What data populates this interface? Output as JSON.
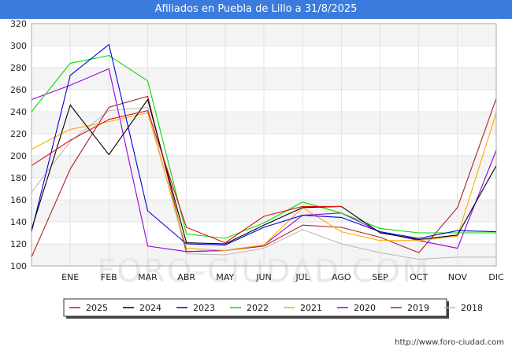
{
  "chart_data": {
    "type": "line",
    "title": "Afiliados en Puebla de Lillo a 31/8/2025",
    "x_labels": [
      "",
      "ENE",
      "FEB",
      "MAR",
      "ABR",
      "MAY",
      "JUN",
      "JUL",
      "AGO",
      "SEP",
      "OCT",
      "NOV",
      "DIC"
    ],
    "ylim": [
      100,
      320
    ],
    "yticks": [
      "100",
      "120",
      "140",
      "160",
      "180",
      "200",
      "220",
      "240",
      "260",
      "280",
      "300",
      "320"
    ],
    "ytick_values": [
      100,
      120,
      140,
      160,
      180,
      200,
      220,
      240,
      260,
      280,
      300,
      320
    ],
    "grid": true,
    "legend_position": "bottom",
    "series": [
      {
        "name": "2025",
        "color": "#dd1111",
        "values": [
          191,
          214,
          233,
          241,
          135,
          121,
          145,
          154,
          154
        ]
      },
      {
        "name": "2024",
        "color": "#000000",
        "values": [
          133,
          246,
          201,
          251,
          121,
          120,
          137,
          153,
          154,
          130,
          124,
          128,
          191
        ]
      },
      {
        "name": "2023",
        "color": "#0000dd",
        "values": [
          131,
          273,
          301,
          150,
          120,
          119,
          135,
          146,
          144,
          131,
          125,
          132,
          131
        ]
      },
      {
        "name": "2022",
        "color": "#00dd00",
        "values": [
          240,
          284,
          291,
          268,
          129,
          125,
          139,
          158,
          148,
          134,
          130,
          130,
          130
        ]
      },
      {
        "name": "2021",
        "color": "#ffaa00",
        "values": [
          206,
          224,
          231,
          239,
          116,
          114,
          119,
          153,
          131,
          123,
          123,
          127,
          239
        ]
      },
      {
        "name": "2020",
        "color": "#9900dd",
        "values": [
          251,
          264,
          279,
          118,
          113,
          114,
          119,
          146,
          148,
          131,
          123,
          116,
          205
        ]
      },
      {
        "name": "2019",
        "color": "#aa2222",
        "values": [
          108,
          188,
          244,
          254,
          113,
          114,
          118,
          137,
          135,
          126,
          112,
          153,
          252
        ]
      },
      {
        "name": "2018",
        "color": "#bbbbbb",
        "values": [
          167,
          213,
          241,
          244,
          111,
          110,
          116,
          133,
          120,
          112,
          106,
          108,
          108
        ]
      }
    ],
    "source": "http://www.foro-ciudad.com"
  },
  "watermark": "FORO-CIUDAD.COM"
}
